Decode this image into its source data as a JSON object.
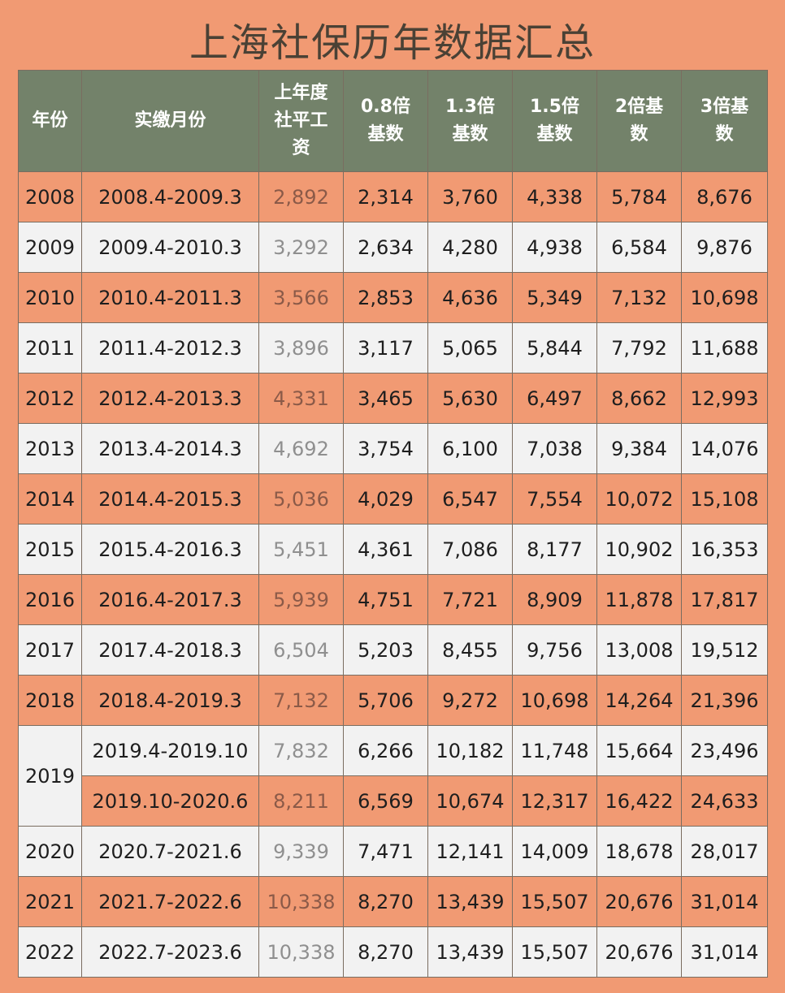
{
  "title": "上海社保历年数据汇总",
  "table": {
    "headers": [
      "年份",
      "实缴月份",
      "上年度社平工资",
      "0.8倍基数",
      "1.3倍基数",
      "1.5倍基数",
      "2倍基数",
      "3倍基数"
    ],
    "rows": [
      {
        "year": "2008",
        "period": "2008.4-2009.3",
        "avg": "2,892",
        "x08": "2,314",
        "x13": "3,760",
        "x15": "4,338",
        "x2": "5,784",
        "x3": "8,676"
      },
      {
        "year": "2009",
        "period": "2009.4-2010.3",
        "avg": "3,292",
        "x08": "2,634",
        "x13": "4,280",
        "x15": "4,938",
        "x2": "6,584",
        "x3": "9,876"
      },
      {
        "year": "2010",
        "period": "2010.4-2011.3",
        "avg": "3,566",
        "x08": "2,853",
        "x13": "4,636",
        "x15": "5,349",
        "x2": "7,132",
        "x3": "10,698"
      },
      {
        "year": "2011",
        "period": "2011.4-2012.3",
        "avg": "3,896",
        "x08": "3,117",
        "x13": "5,065",
        "x15": "5,844",
        "x2": "7,792",
        "x3": "11,688"
      },
      {
        "year": "2012",
        "period": "2012.4-2013.3",
        "avg": "4,331",
        "x08": "3,465",
        "x13": "5,630",
        "x15": "6,497",
        "x2": "8,662",
        "x3": "12,993"
      },
      {
        "year": "2013",
        "period": "2013.4-2014.3",
        "avg": "4,692",
        "x08": "3,754",
        "x13": "6,100",
        "x15": "7,038",
        "x2": "9,384",
        "x3": "14,076"
      },
      {
        "year": "2014",
        "period": "2014.4-2015.3",
        "avg": "5,036",
        "x08": "4,029",
        "x13": "6,547",
        "x15": "7,554",
        "x2": "10,072",
        "x3": "15,108"
      },
      {
        "year": "2015",
        "period": "2015.4-2016.3",
        "avg": "5,451",
        "x08": "4,361",
        "x13": "7,086",
        "x15": "8,177",
        "x2": "10,902",
        "x3": "16,353"
      },
      {
        "year": "2016",
        "period": "2016.4-2017.3",
        "avg": "5,939",
        "x08": "4,751",
        "x13": "7,721",
        "x15": "8,909",
        "x2": "11,878",
        "x3": "17,817"
      },
      {
        "year": "2017",
        "period": "2017.4-2018.3",
        "avg": "6,504",
        "x08": "5,203",
        "x13": "8,455",
        "x15": "9,756",
        "x2": "13,008",
        "x3": "19,512"
      },
      {
        "year": "2018",
        "period": "2018.4-2019.3",
        "avg": "7,132",
        "x08": "5,706",
        "x13": "9,272",
        "x15": "10,698",
        "x2": "14,264",
        "x3": "21,396"
      },
      {
        "year": "2019",
        "period": "2019.4-2019.10",
        "avg": "7,832",
        "x08": "6,266",
        "x13": "10,182",
        "x15": "11,748",
        "x2": "15,664",
        "x3": "23,496"
      },
      {
        "year": "",
        "period": "2019.10-2020.6",
        "avg": "8,211",
        "x08": "6,569",
        "x13": "10,674",
        "x15": "12,317",
        "x2": "16,422",
        "x3": "24,633"
      },
      {
        "year": "2020",
        "period": "2020.7-2021.6",
        "avg": "9,339",
        "x08": "7,471",
        "x13": "12,141",
        "x15": "14,009",
        "x2": "18,678",
        "x3": "28,017"
      },
      {
        "year": "2021",
        "period": "2021.7-2022.6",
        "avg": "10,338",
        "x08": "8,270",
        "x13": "13,439",
        "x15": "15,507",
        "x2": "20,676",
        "x3": "31,014"
      },
      {
        "year": "2022",
        "period": "2022.7-2023.6",
        "avg": "10,338",
        "x08": "8,270",
        "x13": "13,439",
        "x15": "15,507",
        "x2": "20,676",
        "x3": "31,014"
      }
    ]
  }
}
